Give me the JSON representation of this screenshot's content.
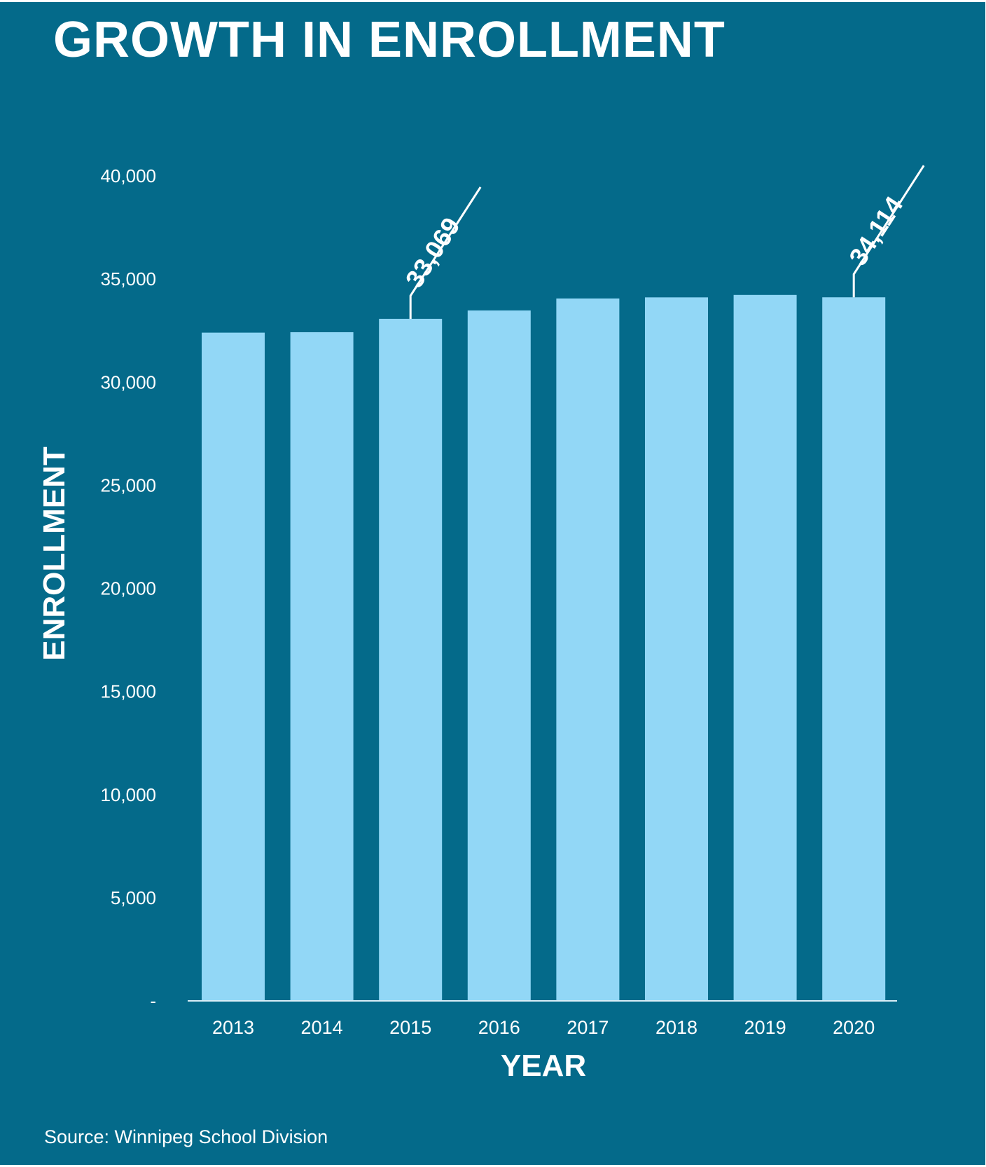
{
  "title": "GROWTH IN ENROLLMENT",
  "source": "Source: Winnipeg School Division",
  "colors": {
    "background": "#046a8a",
    "bar": "#92d7f6",
    "text": "#ffffff"
  },
  "chart_data": {
    "type": "bar",
    "title": "GROWTH IN ENROLLMENT",
    "xlabel": "YEAR",
    "ylabel": "ENROLLMENT",
    "categories": [
      "2013",
      "2014",
      "2015",
      "2016",
      "2017",
      "2018",
      "2019",
      "2020"
    ],
    "values": [
      32400,
      32420,
      33069,
      33480,
      34060,
      34110,
      34230,
      34114
    ],
    "ylim": [
      0,
      40000
    ],
    "yticks": [
      {
        "value": 0,
        "label": "-"
      },
      {
        "value": 5000,
        "label": "5,000"
      },
      {
        "value": 10000,
        "label": "10,000"
      },
      {
        "value": 15000,
        "label": "15,000"
      },
      {
        "value": 20000,
        "label": "20,000"
      },
      {
        "value": 25000,
        "label": "25,000"
      },
      {
        "value": 30000,
        "label": "30,000"
      },
      {
        "value": 35000,
        "label": "35,000"
      },
      {
        "value": 40000,
        "label": "40,000"
      }
    ],
    "grid": false,
    "legend": "none",
    "annotations": [
      {
        "category": "2015",
        "label": "33,069"
      },
      {
        "category": "2020",
        "label": "34,114"
      }
    ]
  }
}
